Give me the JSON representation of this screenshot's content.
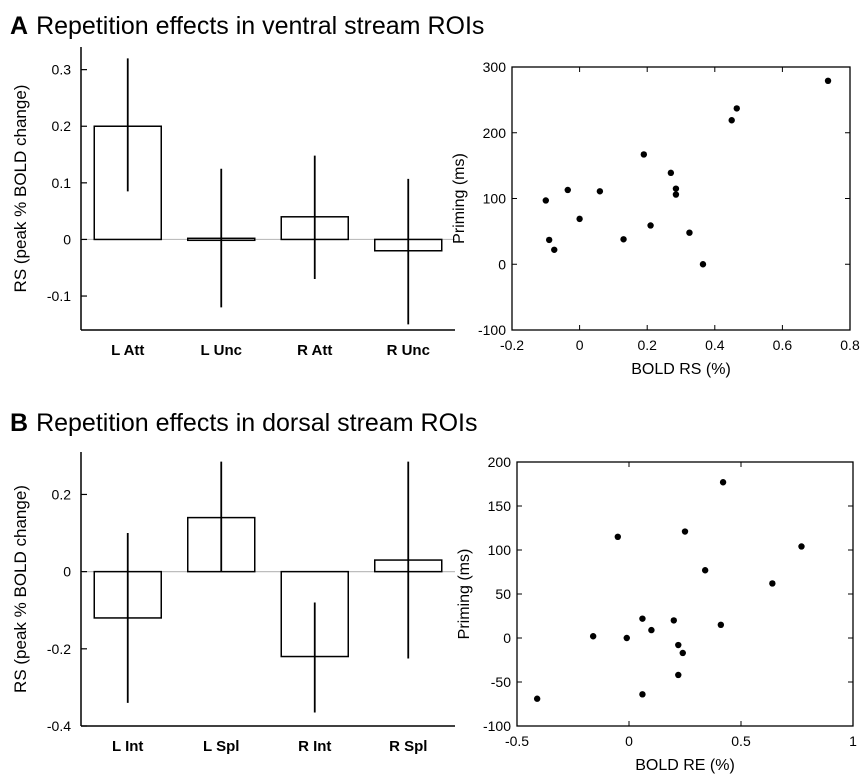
{
  "panels": [
    {
      "letter": "A",
      "title": "Repetition effects in ventral stream ROIs"
    },
    {
      "letter": "B",
      "title": "Repetition effects in dorsal stream ROIs"
    }
  ],
  "chart_data": [
    {
      "type": "bar",
      "panel": "A",
      "categories": [
        "L Att",
        "L Unc",
        "R Att",
        "R Unc"
      ],
      "values": [
        0.2,
        0.002,
        0.04,
        -0.02
      ],
      "error_low": [
        0.085,
        -0.12,
        -0.07,
        -0.15
      ],
      "error_high": [
        0.32,
        0.125,
        0.148,
        0.107
      ],
      "ylabel": "RS (peak % BOLD change)",
      "ylim": [
        -0.16,
        0.34
      ],
      "yticks": [
        -0.1,
        0,
        0.1,
        0.2,
        0.3
      ],
      "ytick_labels": [
        "-0.1",
        "0",
        "0.1",
        "0.2",
        "0.3"
      ],
      "zero_line": true
    },
    {
      "type": "scatter",
      "panel": "A",
      "xlabel": "BOLD RS (%)",
      "ylabel": "Priming (ms)",
      "xlim": [
        -0.2,
        0.8
      ],
      "ylim": [
        -100,
        300
      ],
      "xticks": [
        -0.2,
        0,
        0.2,
        0.4,
        0.6,
        0.8
      ],
      "xtick_labels": [
        "-0.2",
        "0",
        "0.2",
        "0.4",
        "0.6",
        "0.8"
      ],
      "yticks": [
        -100,
        0,
        100,
        200,
        300
      ],
      "ytick_labels": [
        "-100",
        "0",
        "100",
        "200",
        "300"
      ],
      "points": [
        [
          -0.1,
          97
        ],
        [
          -0.09,
          37
        ],
        [
          -0.075,
          22
        ],
        [
          -0.035,
          113
        ],
        [
          0.0,
          69
        ],
        [
          0.06,
          111
        ],
        [
          0.13,
          38
        ],
        [
          0.19,
          167
        ],
        [
          0.21,
          59
        ],
        [
          0.27,
          139
        ],
        [
          0.285,
          115
        ],
        [
          0.285,
          106
        ],
        [
          0.325,
          48
        ],
        [
          0.365,
          0
        ],
        [
          0.45,
          219
        ],
        [
          0.465,
          237
        ],
        [
          0.735,
          279
        ]
      ]
    },
    {
      "type": "bar",
      "panel": "B",
      "categories": [
        "L Int",
        "L Spl",
        "R Int",
        "R Spl"
      ],
      "values": [
        -0.12,
        0.14,
        -0.22,
        0.03
      ],
      "error_low": [
        -0.34,
        0.0,
        -0.365,
        -0.225
      ],
      "error_high": [
        0.1,
        0.285,
        -0.08,
        0.285
      ],
      "ylabel": "RS (peak % BOLD change)",
      "ylim": [
        -0.4,
        0.31
      ],
      "yticks": [
        -0.4,
        -0.2,
        0,
        0.2
      ],
      "ytick_labels": [
        "-0.4",
        "-0.2",
        "0",
        "0.2"
      ],
      "zero_line": true
    },
    {
      "type": "scatter",
      "panel": "B",
      "xlabel": "BOLD RE (%)",
      "ylabel": "Priming (ms)",
      "xlim": [
        -0.5,
        1
      ],
      "ylim": [
        -100,
        200
      ],
      "xticks": [
        -0.5,
        0,
        0.5,
        1
      ],
      "xtick_labels": [
        "-0.5",
        "0",
        "0.5",
        "1"
      ],
      "yticks": [
        -100,
        -50,
        0,
        50,
        100,
        150,
        200
      ],
      "ytick_labels": [
        "-100",
        "-50",
        "0",
        "50",
        "100",
        "150",
        "200"
      ],
      "points": [
        [
          -0.41,
          -69
        ],
        [
          -0.16,
          2
        ],
        [
          -0.05,
          115
        ],
        [
          -0.01,
          0
        ],
        [
          0.06,
          22
        ],
        [
          0.06,
          -64
        ],
        [
          0.1,
          9
        ],
        [
          0.2,
          20
        ],
        [
          0.22,
          -8
        ],
        [
          0.22,
          -42
        ],
        [
          0.24,
          -17
        ],
        [
          0.25,
          121
        ],
        [
          0.34,
          77
        ],
        [
          0.41,
          15
        ],
        [
          0.42,
          177
        ],
        [
          0.64,
          62
        ],
        [
          0.77,
          104
        ]
      ]
    }
  ]
}
